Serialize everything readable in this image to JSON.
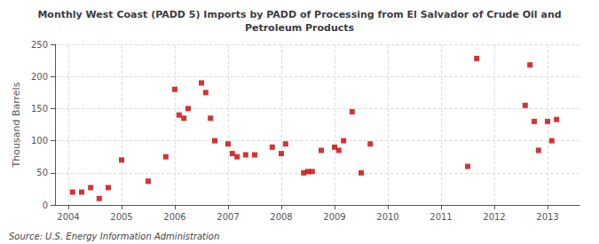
{
  "chart_data": {
    "type": "scatter",
    "title": "Monthly West Coast (PADD 5) Imports by PADD of Processing from El Salvador of Crude Oil and\nPetroleum Products",
    "ylabel": "Thousand Barrels",
    "annotations": [
      "Source: U.S. Energy Information Administration"
    ],
    "color": "#cc0000",
    "marker": "square",
    "grid": true,
    "xlim": [
      2003.75,
      2013.6
    ],
    "xticks": [
      2004,
      2005,
      2006,
      2007,
      2008,
      2009,
      2010,
      2011,
      2012,
      2013
    ],
    "ylim": [
      0,
      250
    ],
    "yticks": [
      0,
      50,
      100,
      150,
      200,
      250
    ],
    "x": [
      2004.08,
      2004.25,
      2004.42,
      2004.58,
      2004.75,
      2005.0,
      2005.5,
      2005.83,
      2006.0,
      2006.08,
      2006.17,
      2006.25,
      2006.5,
      2006.58,
      2006.67,
      2006.75,
      2007.0,
      2007.08,
      2007.17,
      2007.33,
      2007.5,
      2007.83,
      2008.0,
      2008.08,
      2008.42,
      2008.5,
      2008.58,
      2008.75,
      2009.0,
      2009.08,
      2009.17,
      2009.33,
      2009.5,
      2009.67,
      2011.5,
      2011.67,
      2012.58,
      2012.67,
      2012.75,
      2012.83,
      2013.0,
      2013.08,
      2013.17
    ],
    "values": [
      20,
      20,
      27,
      10,
      27,
      70,
      37,
      75,
      180,
      140,
      135,
      150,
      190,
      175,
      135,
      100,
      95,
      80,
      75,
      78,
      78,
      90,
      80,
      95,
      50,
      52,
      52,
      85,
      90,
      85,
      100,
      145,
      50,
      95,
      60,
      228,
      155,
      218,
      130,
      85,
      130,
      100,
      133
    ]
  }
}
